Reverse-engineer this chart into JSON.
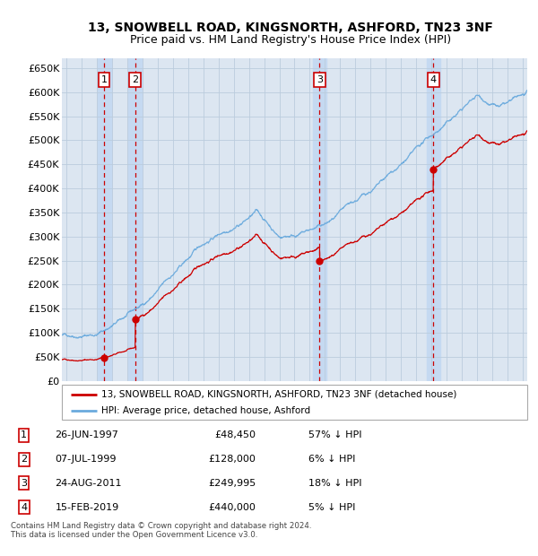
{
  "title": "13, SNOWBELL ROAD, KINGSNORTH, ASHFORD, TN23 3NF",
  "subtitle": "Price paid vs. HM Land Registry's House Price Index (HPI)",
  "ylim": [
    0,
    670000
  ],
  "yticks": [
    0,
    50000,
    100000,
    150000,
    200000,
    250000,
    300000,
    350000,
    400000,
    450000,
    500000,
    550000,
    600000,
    650000
  ],
  "xlim_start": 1994.7,
  "xlim_end": 2025.3,
  "sales": [
    {
      "num": 1,
      "date_num": 1997.48,
      "price": 48450,
      "label": "1"
    },
    {
      "num": 2,
      "date_num": 1999.52,
      "price": 128000,
      "label": "2"
    },
    {
      "num": 3,
      "date_num": 2011.65,
      "price": 249995,
      "label": "3"
    },
    {
      "num": 4,
      "date_num": 2019.12,
      "price": 440000,
      "label": "4"
    }
  ],
  "sale_table": [
    {
      "num": "1",
      "date": "26-JUN-1997",
      "price": "£48,450",
      "hpi": "57% ↓ HPI"
    },
    {
      "num": "2",
      "date": "07-JUL-1999",
      "price": "£128,000",
      "hpi": "6% ↓ HPI"
    },
    {
      "num": "3",
      "date": "24-AUG-2011",
      "price": "£249,995",
      "hpi": "18% ↓ HPI"
    },
    {
      "num": "4",
      "date": "15-FEB-2019",
      "price": "£440,000",
      "hpi": "5% ↓ HPI"
    }
  ],
  "legend_property_label": "13, SNOWBELL ROAD, KINGSNORTH, ASHFORD, TN23 3NF (detached house)",
  "legend_hpi_label": "HPI: Average price, detached house, Ashford",
  "footnote": "Contains HM Land Registry data © Crown copyright and database right 2024.\nThis data is licensed under the Open Government Licence v3.0.",
  "sale_color": "#cc0000",
  "hpi_color": "#6aaadd",
  "box_color": "#cc0000",
  "background_plot": "#dce6f1",
  "sale_band_color": "#c5d9f1",
  "grid_color": "#bbccdd",
  "title_fontsize": 10,
  "subtitle_fontsize": 9
}
